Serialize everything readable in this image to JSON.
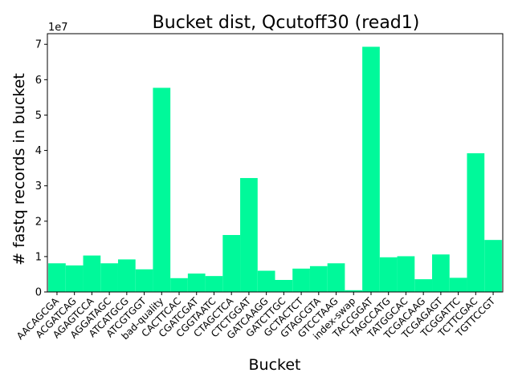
{
  "chart_data": {
    "type": "bar",
    "title": "Bucket dist, Qcutoff30 (read1)",
    "xlabel": "Bucket",
    "ylabel": "# fastq records in bucket",
    "y_multiplier_label": "1e7",
    "ylim": [
      0,
      7.3
    ],
    "yticks": [
      0,
      1,
      2,
      3,
      4,
      5,
      6,
      7
    ],
    "grid": false,
    "bar_color": "#00f99a",
    "categories": [
      "AACAGCGA",
      "ACGATCAG",
      "AGAGTCCA",
      "AGGATAGC",
      "ATCATGCG",
      "ATCGTGGT",
      "bad-quality",
      "CACTTCAC",
      "CGATCGAT",
      "CGGTAATC",
      "CTAGCTCA",
      "CTCTGGAT",
      "GATCAAGG",
      "GATCTTGC",
      "GCTACTCT",
      "GTAGCGTA",
      "GTCCTAAG",
      "index-swap",
      "TACCGGAT",
      "TAGCCATG",
      "TATGGCAC",
      "TCGACAAG",
      "TCGAGAGT",
      "TCGGATTC",
      "TCTTCGAC",
      "TGTTCCGT"
    ],
    "values": [
      0.81,
      0.75,
      1.03,
      0.81,
      0.92,
      0.64,
      5.77,
      0.39,
      0.52,
      0.45,
      1.61,
      3.22,
      0.6,
      0.34,
      0.66,
      0.73,
      0.81,
      0.05,
      6.93,
      0.98,
      1.01,
      0.36,
      1.06,
      0.4,
      3.92,
      1.47
    ]
  }
}
